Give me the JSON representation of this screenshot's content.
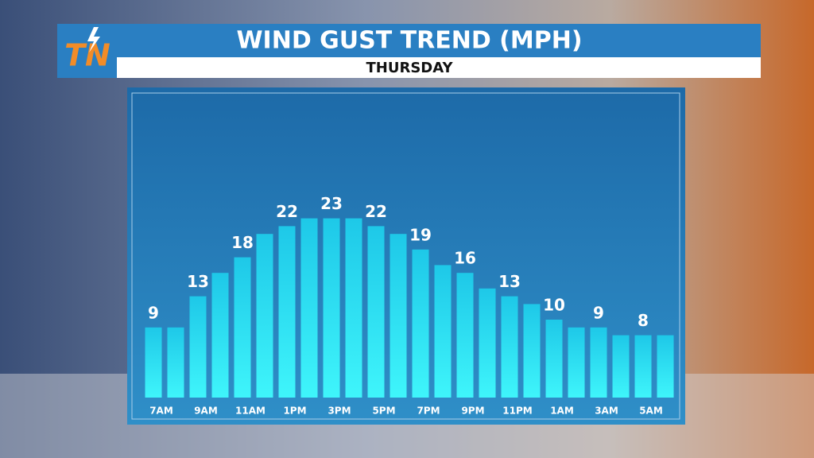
{
  "logo": "TN",
  "chart_data": {
    "type": "bar",
    "title": "WIND GUST TREND (MPH)",
    "subtitle": "THURSDAY",
    "categories": [
      "7AM",
      null,
      "9AM",
      null,
      "11AM",
      null,
      "1PM",
      null,
      "3PM",
      null,
      "5PM",
      null,
      "7PM",
      null,
      "9PM",
      null,
      "11PM",
      null,
      "1AM",
      null,
      "3AM",
      null,
      "5AM",
      null
    ],
    "values": [
      9,
      9,
      13,
      16,
      18,
      21,
      22,
      23,
      23,
      23,
      22,
      21,
      19,
      17,
      16,
      14,
      13,
      12,
      10,
      9,
      9,
      8,
      8,
      8
    ],
    "color": "#29e6f2"
  }
}
